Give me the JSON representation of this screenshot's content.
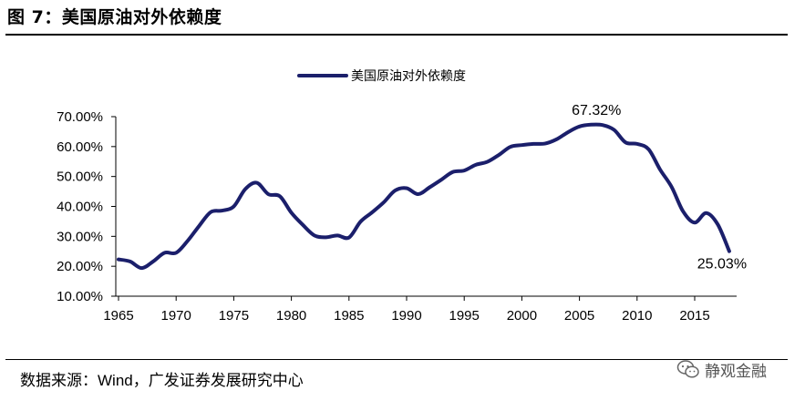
{
  "figure": {
    "title": "图 7：美国原油对外依赖度",
    "source_label": "数据来源：",
    "source_value": "Wind，广发证券发展研究中心",
    "watermark": "静观金融"
  },
  "colors": {
    "line": "#1b1f6b",
    "axis": "#000000"
  },
  "chart_data": {
    "type": "line",
    "title": "",
    "xlabel": "",
    "ylabel": "",
    "legend": "top-center",
    "grid": false,
    "xlim": [
      1965,
      2018
    ],
    "ylim": [
      10,
      70
    ],
    "x_ticks": [
      1965,
      1970,
      1975,
      1980,
      1985,
      1990,
      1995,
      2000,
      2005,
      2010,
      2015
    ],
    "x_tick_labels": [
      "1965",
      "1970",
      "1975",
      "1980",
      "1985",
      "1990",
      "1995",
      "2000",
      "2005",
      "2010",
      "2015"
    ],
    "y_ticks": [
      10,
      20,
      30,
      40,
      50,
      60,
      70
    ],
    "y_tick_labels": [
      "10.00%",
      "20.00%",
      "30.00%",
      "40.00%",
      "50.00%",
      "60.00%",
      "70.00%"
    ],
    "x": [
      1965,
      1966,
      1967,
      1968,
      1969,
      1970,
      1971,
      1972,
      1973,
      1974,
      1975,
      1976,
      1977,
      1978,
      1979,
      1980,
      1981,
      1982,
      1983,
      1984,
      1985,
      1986,
      1987,
      1988,
      1989,
      1990,
      1991,
      1992,
      1993,
      1994,
      1995,
      1996,
      1997,
      1998,
      1999,
      2000,
      2001,
      2002,
      2003,
      2004,
      2005,
      2006,
      2007,
      2008,
      2009,
      2010,
      2011,
      2012,
      2013,
      2014,
      2015,
      2016,
      2017,
      2018
    ],
    "series": [
      {
        "name": "美国原油对外依赖度",
        "values": [
          22.3,
          21.6,
          19.4,
          21.6,
          24.5,
          24.5,
          28.5,
          33.5,
          38.1,
          38.6,
          40.0,
          45.8,
          47.9,
          44.1,
          43.4,
          37.9,
          33.8,
          30.3,
          29.7,
          30.3,
          29.6,
          34.9,
          38.0,
          41.3,
          45.3,
          46.1,
          44.1,
          46.4,
          48.9,
          51.5,
          52.0,
          53.9,
          54.9,
          57.2,
          59.9,
          60.5,
          60.9,
          61.0,
          62.4,
          64.8,
          66.7,
          67.32,
          67.2,
          65.6,
          61.4,
          60.9,
          59.1,
          52.3,
          46.5,
          38.3,
          34.6,
          37.8,
          34.0,
          25.03
        ]
      }
    ],
    "annotations": [
      {
        "x": 2006,
        "y": 67.32,
        "text": "67.32%"
      },
      {
        "x": 2018,
        "y": 25.03,
        "text": "25.03%"
      }
    ]
  }
}
